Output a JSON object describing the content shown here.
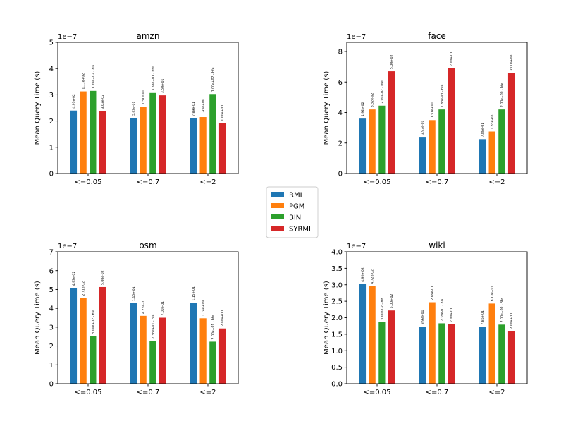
{
  "legend": {
    "placement": "center",
    "entries": [
      {
        "name": "RMI",
        "color": "#1f77b4"
      },
      {
        "name": "PGM",
        "color": "#ff7f0e"
      },
      {
        "name": "BIN",
        "color": "#2ca02c"
      },
      {
        "name": "SYRMI",
        "color": "#d62728"
      }
    ]
  },
  "chart_data": [
    {
      "type": "bar",
      "title": "amzn",
      "xlabel": "",
      "ylabel": "Mean Query Time (s)",
      "offset_label": "1e−7",
      "ylim": [
        0,
        5
      ],
      "yticks": [
        "0",
        "1",
        "2",
        "3",
        "4",
        "5"
      ],
      "categories": [
        "<=0.05",
        "<=0.7",
        "<=2"
      ],
      "series": [
        {
          "name": "RMI",
          "values": [
            2.4,
            2.12,
            2.1
          ],
          "labels": [
            "4.93e-02",
            "5.93e-01",
            "7.89e-01"
          ]
        },
        {
          "name": "PGM",
          "values": [
            3.13,
            2.55,
            2.15
          ],
          "labels": [
            "1.11e+02",
            "7.51e-01",
            "1.45e+00"
          ]
        },
        {
          "name": "BIN",
          "values": [
            3.15,
            3.07,
            3.03
          ],
          "labels": [
            "1.50e+02 - 8ls",
            "3.68e+01 - bfe",
            "1.00e+02 - bfe"
          ]
        },
        {
          "name": "SYRMI",
          "values": [
            2.38,
            2.98,
            1.92
          ],
          "labels": [
            "3.03e-02",
            "3.50e-01",
            "1.00e+00"
          ]
        }
      ]
    },
    {
      "type": "bar",
      "title": "face",
      "xlabel": "",
      "ylabel": "Mean Query Time (s)",
      "offset_label": "1e−7",
      "ylim": [
        0,
        8.6
      ],
      "yticks": [
        "0",
        "2",
        "4",
        "6",
        "8"
      ],
      "categories": [
        "<=0.05",
        "<=0.7",
        "<=2"
      ],
      "series": [
        {
          "name": "RMI",
          "values": [
            3.6,
            2.4,
            2.25
          ],
          "labels": [
            "4.92e-02",
            "3.93e-01",
            "7.88e-01"
          ]
        },
        {
          "name": "PGM",
          "values": [
            4.2,
            3.5,
            2.75
          ],
          "labels": [
            "3.32e-02",
            "1.51e+01",
            "1.35e+00"
          ]
        },
        {
          "name": "BIN",
          "values": [
            4.45,
            4.2,
            4.2
          ],
          "labels": [
            "2.00e-02 - bfe",
            "7.86e-03 - bfe",
            "2.00e+00 - bfe"
          ]
        },
        {
          "name": "SYRMI",
          "values": [
            6.7,
            6.9,
            6.6
          ],
          "labels": [
            "5.00e-02",
            "7.00e-01",
            "2.00e+00"
          ]
        }
      ]
    },
    {
      "type": "bar",
      "title": "osm",
      "xlabel": "",
      "ylabel": "Mean Query Time (s)",
      "offset_label": "1e−7",
      "ylim": [
        0,
        7
      ],
      "yticks": [
        "0",
        "1",
        "2",
        "3",
        "4",
        "5",
        "6",
        "7"
      ],
      "categories": [
        "<=0.05",
        "<=0.7",
        "<=2"
      ],
      "series": [
        {
          "name": "RMI",
          "values": [
            5.08,
            4.27,
            4.28
          ],
          "labels": [
            "4.93e-02",
            "1.15e-01",
            "1.15e-01"
          ]
        },
        {
          "name": "PGM",
          "values": [
            4.55,
            3.6,
            3.47
          ],
          "labels": [
            "2.71e-02",
            "4.27e-01",
            "1.74e+00"
          ]
        },
        {
          "name": "BIN",
          "values": [
            2.52,
            2.27,
            2.23
          ],
          "labels": [
            "5.00e+02 - bfe",
            "7.36e+01 - bfe",
            "2.00e+01 - bfe"
          ]
        },
        {
          "name": "SYRMI",
          "values": [
            5.13,
            3.5,
            2.93
          ],
          "labels": [
            "5.00e-02",
            "7.00e-01",
            "2.00e+00"
          ]
        }
      ]
    },
    {
      "type": "bar",
      "title": "wiki",
      "xlabel": "",
      "ylabel": "Mean Query Time (s)",
      "offset_label": "1e−7",
      "ylim": [
        0,
        4
      ],
      "yticks": [
        "0.0",
        "0.5",
        "1.0",
        "1.5",
        "2.0",
        "2.5",
        "3.0",
        "3.5",
        "4.0"
      ],
      "categories": [
        "<=0.05",
        "<=0.7",
        "<=2"
      ],
      "series": [
        {
          "name": "RMI",
          "values": [
            3.02,
            1.73,
            1.72
          ],
          "labels": [
            "4.92e-02",
            "3.93e-01",
            "7.86e-01"
          ]
        },
        {
          "name": "PGM",
          "values": [
            2.96,
            2.47,
            2.43
          ],
          "labels": [
            "4.72e-02",
            "2.69e-01",
            "6.10e+01"
          ]
        },
        {
          "name": "BIN",
          "values": [
            1.87,
            1.83,
            1.79
          ],
          "labels": [
            "5.00e-02 - 8ls",
            "7.39e-01 - 8ls",
            "2.00e+00 - 8bs"
          ]
        },
        {
          "name": "SYRMI",
          "values": [
            2.22,
            1.8,
            1.59
          ],
          "labels": [
            "5.00e-02",
            "7.00e-01",
            "2.00e+00"
          ]
        }
      ]
    }
  ]
}
